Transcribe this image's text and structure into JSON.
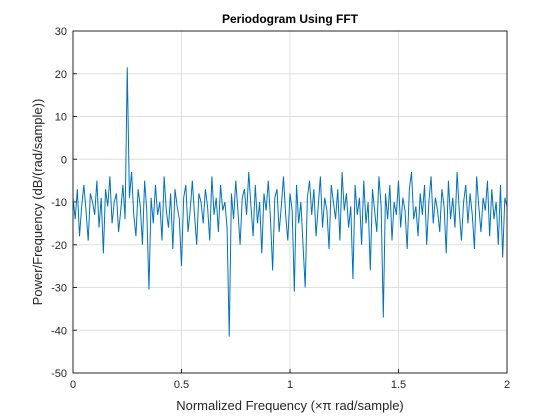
{
  "chart_data": {
    "type": "line",
    "title": "Periodogram Using FFT",
    "x_label": "Normalized Frequency (×π rad/sample)",
    "y_label": "Power/Frequency (dB/(rad/sample))",
    "xlim": [
      0,
      2
    ],
    "xticks": [
      0,
      0.5,
      1,
      1.5,
      2
    ],
    "ylim": [
      -50,
      30
    ],
    "yticks": [
      -50,
      -40,
      -30,
      -20,
      -10,
      0,
      10,
      20,
      30
    ],
    "grid": true,
    "x": [
      0,
      0.01,
      0.02,
      0.03,
      0.04,
      0.05,
      0.06,
      0.07,
      0.08,
      0.09,
      0.1,
      0.11,
      0.12,
      0.13,
      0.14,
      0.15,
      0.16,
      0.17,
      0.18,
      0.19,
      0.2,
      0.21,
      0.22,
      0.23,
      0.24,
      0.25,
      0.26,
      0.27,
      0.28,
      0.29,
      0.3,
      0.31,
      0.32,
      0.33,
      0.34,
      0.35,
      0.36,
      0.37,
      0.38,
      0.39,
      0.4,
      0.41,
      0.42,
      0.43,
      0.44,
      0.45,
      0.46,
      0.47,
      0.48,
      0.49,
      0.5,
      0.51,
      0.52,
      0.53,
      0.54,
      0.55,
      0.56,
      0.57,
      0.58,
      0.59,
      0.6,
      0.61,
      0.62,
      0.63,
      0.64,
      0.65,
      0.66,
      0.67,
      0.68,
      0.69,
      0.7,
      0.71,
      0.72,
      0.73,
      0.74,
      0.75,
      0.76,
      0.77,
      0.78,
      0.79,
      0.8,
      0.81,
      0.82,
      0.83,
      0.84,
      0.85,
      0.86,
      0.87,
      0.88,
      0.89,
      0.9,
      0.91,
      0.92,
      0.93,
      0.94,
      0.95,
      0.96,
      0.97,
      0.98,
      0.99,
      1,
      1.01,
      1.02,
      1.03,
      1.04,
      1.05,
      1.06,
      1.07,
      1.08,
      1.09,
      1.1,
      1.11,
      1.12,
      1.13,
      1.14,
      1.15,
      1.16,
      1.17,
      1.18,
      1.19,
      1.2,
      1.21,
      1.22,
      1.23,
      1.24,
      1.25,
      1.26,
      1.27,
      1.28,
      1.29,
      1.3,
      1.31,
      1.32,
      1.33,
      1.34,
      1.35,
      1.36,
      1.37,
      1.38,
      1.39,
      1.4,
      1.41,
      1.42,
      1.43,
      1.44,
      1.45,
      1.46,
      1.47,
      1.48,
      1.49,
      1.5,
      1.51,
      1.52,
      1.53,
      1.54,
      1.55,
      1.56,
      1.57,
      1.58,
      1.59,
      1.6,
      1.61,
      1.62,
      1.63,
      1.64,
      1.65,
      1.66,
      1.67,
      1.68,
      1.69,
      1.7,
      1.71,
      1.72,
      1.73,
      1.74,
      1.75,
      1.76,
      1.77,
      1.78,
      1.79,
      1.8,
      1.81,
      1.82,
      1.83,
      1.84,
      1.85,
      1.86,
      1.87,
      1.88,
      1.89,
      1.9,
      1.91,
      1.92,
      1.93,
      1.94,
      1.95,
      1.96,
      1.97,
      1.98,
      1.99,
      2
    ],
    "series": [
      {
        "color": "#0072bd",
        "values": [
          -9,
          -14,
          -7,
          -18,
          -11,
          -6,
          -12,
          -19,
          -8,
          -10,
          -13,
          -5,
          -16,
          -9,
          -22,
          -7,
          -11,
          -4,
          -15,
          -10,
          -8,
          -17,
          -12,
          -6,
          -14,
          21.5,
          -9,
          -3,
          -13,
          -18,
          -7,
          -11,
          -20,
          -5,
          -12,
          -30.5,
          -9,
          -15,
          -6,
          -13,
          -10,
          -19,
          -4,
          -12,
          -16,
          -8,
          -21,
          -7,
          -11,
          -14,
          -25,
          -9,
          -6,
          -17,
          -12,
          -5,
          -13,
          -20,
          -8,
          -10,
          -15,
          -7,
          -11,
          -19,
          -4,
          -13,
          -9,
          -17,
          -6,
          -12,
          -10,
          -16,
          -41.5,
          -8,
          -14,
          -5,
          -12,
          -20,
          -9,
          -7,
          -13,
          -3,
          -11,
          -18,
          -6,
          -15,
          -10,
          -22,
          -8,
          -12,
          -5,
          -14,
          -26,
          -9,
          -7,
          -17,
          -11,
          -4,
          -13,
          -19,
          -8,
          -12,
          -31,
          -6,
          -15,
          -10,
          -20,
          -30,
          -9,
          -5,
          -13,
          -7,
          -18,
          -11,
          -4,
          -16,
          -9,
          -12,
          -21,
          -6,
          -10,
          -14,
          -7,
          -19,
          -3,
          -12,
          -8,
          -16,
          -11,
          -28,
          -6,
          -13,
          -9,
          -20,
          -5,
          -15,
          -10,
          -26,
          -7,
          -12,
          -17,
          -4,
          -11,
          -37,
          -8,
          -14,
          -6,
          -19,
          -10,
          -13,
          -5,
          -16,
          -9,
          -12,
          -21,
          -7,
          -3,
          -14,
          -11,
          -18,
          -8,
          -13,
          -6,
          -20,
          -10,
          -4,
          -15,
          -9,
          -12,
          -17,
          -7,
          -11,
          -22,
          -5,
          -14,
          -9,
          -16,
          -3,
          -12,
          -19,
          -10,
          -6,
          -15,
          -8,
          -13,
          -21,
          -4,
          -11,
          -17,
          -9,
          -12,
          -5,
          -18,
          -7,
          -14,
          -10,
          -20,
          -6,
          -23,
          -9,
          -11
        ]
      }
    ]
  }
}
